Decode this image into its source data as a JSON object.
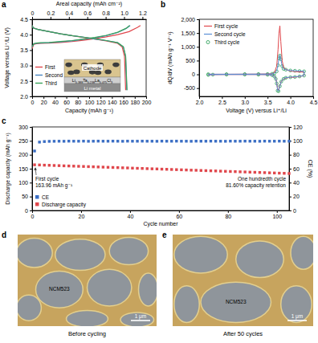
{
  "chart_data": [
    {
      "panel_label": "a",
      "type": "line",
      "x_label": "Capacity (mAh g⁻¹)",
      "xlim": [
        0,
        200
      ],
      "xticks": [
        0,
        20,
        40,
        60,
        80,
        100,
        120,
        140,
        160,
        180,
        200
      ],
      "x2_label": "Areal capacity (mAh cm⁻²)",
      "x2lim": [
        0,
        1.24
      ],
      "x2ticks": [
        0,
        0.2,
        0.4,
        0.6,
        0.8,
        {
          "value": 1,
          "label": "1.0"
        },
        1.2
      ],
      "y_label": "Voltage versus Li⁺/Li (V)",
      "ylim": [
        2,
        4.5
      ],
      "yticks": [
        {
          "value": 2,
          "label": "2.0"
        },
        2.5,
        {
          "value": 3,
          "label": "3.0"
        },
        3.5,
        {
          "value": 4,
          "label": "4.0"
        },
        4.5
      ],
      "legend": "lower left",
      "inset": {
        "top_label": "Cathode",
        "middle_label": "Li0.388Ta0.238La0.475Cl3",
        "bottom_label": "Li metal"
      },
      "series": [
        {
          "name": "First",
          "color": "#e0474c",
          "x": [
            0,
            3,
            8,
            15,
            30,
            50,
            70,
            90,
            110,
            130,
            150,
            170,
            185,
            190
          ],
          "values": [
            3.55,
            3.69,
            3.71,
            3.72,
            3.73,
            3.75,
            3.78,
            3.82,
            3.87,
            3.93,
            4.0,
            4.1,
            4.24,
            4.3
          ]
        },
        {
          "name": "Second",
          "color": "#4a86c0",
          "x": [
            0,
            3,
            8,
            15,
            30,
            50,
            70,
            90,
            110,
            130,
            150,
            165,
            172
          ],
          "values": [
            3.6,
            3.7,
            3.72,
            3.73,
            3.74,
            3.77,
            3.8,
            3.85,
            3.9,
            3.97,
            4.07,
            4.2,
            4.3
          ]
        },
        {
          "name": "Third",
          "color": "#3aa35a",
          "x": [
            0,
            3,
            8,
            15,
            30,
            50,
            70,
            90,
            110,
            130,
            150,
            165,
            171
          ],
          "values": [
            3.61,
            3.71,
            3.73,
            3.74,
            3.75,
            3.78,
            3.81,
            3.86,
            3.91,
            3.98,
            4.08,
            4.21,
            4.3
          ]
        },
        {
          "name": "First",
          "color": "#e0474c",
          "x": [
            0,
            2,
            10,
            30,
            50,
            70,
            90,
            110,
            130,
            150,
            158,
            162,
            164
          ],
          "values": [
            4.3,
            4.22,
            4.17,
            4.1,
            4.03,
            3.97,
            3.91,
            3.86,
            3.8,
            3.72,
            3.6,
            3.3,
            2.2
          ]
        },
        {
          "name": "Second",
          "color": "#4a86c0",
          "x": [
            0,
            2,
            10,
            30,
            50,
            70,
            90,
            110,
            130,
            150,
            160,
            164,
            166
          ],
          "values": [
            4.3,
            4.22,
            4.17,
            4.1,
            4.03,
            3.97,
            3.92,
            3.86,
            3.81,
            3.74,
            3.6,
            3.3,
            2.2
          ]
        },
        {
          "name": "Third",
          "color": "#3aa35a",
          "x": [
            0,
            2,
            10,
            30,
            50,
            70,
            90,
            110,
            130,
            150,
            160,
            164,
            166.5
          ],
          "values": [
            4.3,
            4.22,
            4.17,
            4.1,
            4.03,
            3.97,
            3.92,
            3.87,
            3.81,
            3.74,
            3.61,
            3.3,
            2.2
          ]
        }
      ]
    },
    {
      "panel_label": "b",
      "type": "line",
      "x_label": "Voltage (V) versus Li⁺/Li",
      "xlim": [
        2,
        4.5
      ],
      "xticks": [
        {
          "value": 2,
          "label": "2.0"
        },
        2.5,
        {
          "value": 3,
          "label": "3.0"
        },
        3.5,
        {
          "value": 4,
          "label": "4.0"
        },
        4.5
      ],
      "y_label": "dQ/dV (mAh g⁻¹ V⁻¹)",
      "ylim": [
        -800,
        2000
      ],
      "yticks": [
        -500,
        0,
        500,
        {
          "value": 1000,
          "label": "1,000"
        },
        {
          "value": 1500,
          "label": "1,500"
        },
        {
          "value": 2000,
          "label": "2,000"
        }
      ],
      "legend": "upper left",
      "series": [
        {
          "name": "First cycle",
          "color": "#e0474c",
          "line_style": "solid",
          "marker": "none",
          "x": [
            2.2,
            2.6,
            3.0,
            3.3,
            3.5,
            3.6,
            3.65,
            3.7,
            3.73,
            3.75,
            3.77,
            3.79,
            3.82,
            3.85,
            3.9,
            4.0,
            4.1,
            4.2,
            4.3,
            4.3,
            4.2,
            4.1,
            4.0,
            3.9,
            3.85,
            3.8,
            3.77,
            3.74,
            3.72,
            3.7,
            3.68,
            3.65,
            3.6,
            3.5,
            3.3,
            3.0,
            2.6,
            2.3,
            2.2
          ],
          "values": [
            5,
            5,
            8,
            10,
            15,
            25,
            60,
            300,
            900,
            1500,
            1760,
            1200,
            500,
            250,
            180,
            120,
            100,
            90,
            80,
            -40,
            -80,
            -100,
            -110,
            -130,
            -170,
            -250,
            -400,
            -560,
            -540,
            -300,
            -150,
            -70,
            -30,
            -10,
            -5,
            -5,
            -5,
            -10,
            -20
          ]
        },
        {
          "name": "Second cycle",
          "color": "#5b8fd6",
          "line_style": "solid",
          "marker": "none",
          "x": [
            2.2,
            2.6,
            3.0,
            3.3,
            3.5,
            3.6,
            3.65,
            3.7,
            3.73,
            3.75,
            3.77,
            3.79,
            3.82,
            3.85,
            3.9,
            4.0,
            4.1,
            4.2,
            4.3,
            4.3,
            4.2,
            4.1,
            4.0,
            3.9,
            3.85,
            3.8,
            3.77,
            3.74,
            3.72,
            3.7,
            3.68,
            3.65,
            3.6,
            3.5,
            3.3,
            3.0,
            2.6,
            2.3,
            2.2
          ],
          "values": [
            5,
            5,
            8,
            10,
            12,
            20,
            40,
            120,
            350,
            600,
            700,
            560,
            300,
            200,
            170,
            140,
            130,
            120,
            110,
            -40,
            -70,
            -90,
            -100,
            -120,
            -160,
            -260,
            -420,
            -600,
            -580,
            -320,
            -160,
            -70,
            -30,
            -12,
            -6,
            -5,
            -5,
            -10,
            -20
          ]
        },
        {
          "name": "Third cycle",
          "color": "#2ca05a",
          "line_style": "none",
          "marker": "circle",
          "x": [
            2.2,
            2.6,
            3.0,
            3.3,
            3.5,
            3.6,
            3.65,
            3.7,
            3.73,
            3.75,
            3.77,
            3.79,
            3.82,
            3.85,
            3.9,
            4.0,
            4.1,
            4.2,
            4.3,
            4.3,
            4.2,
            4.1,
            4.0,
            3.9,
            3.85,
            3.8,
            3.77,
            3.74,
            3.72,
            3.7,
            3.68,
            3.65,
            3.6,
            3.5,
            3.3,
            3.0,
            2.6,
            2.3,
            2.2
          ],
          "values": [
            5,
            5,
            8,
            10,
            12,
            20,
            40,
            110,
            330,
            580,
            680,
            550,
            300,
            200,
            170,
            140,
            130,
            120,
            110,
            -45,
            -75,
            -95,
            -105,
            -125,
            -165,
            -265,
            -430,
            -610,
            -590,
            -330,
            -165,
            -75,
            -32,
            -14,
            -8,
            -6,
            -6,
            -10,
            -20
          ]
        }
      ]
    },
    {
      "panel_label": "c",
      "type": "scatter",
      "x_label": "Cycle number",
      "xlim": [
        0,
        105
      ],
      "xticks": [
        0,
        20,
        40,
        60,
        80,
        100
      ],
      "y_label": "Discharge capacity (mAh g⁻¹)",
      "ylim": [
        0,
        300
      ],
      "yticks": [
        0,
        50,
        100,
        150,
        200,
        250,
        300
      ],
      "y2_label": "CE (%)",
      "y2lim": [
        0,
        120
      ],
      "y2ticks": [
        0,
        20,
        40,
        60,
        80,
        100,
        120
      ],
      "legend": "lower left",
      "annotations": [
        {
          "lines": [
            "First cycle",
            "163.96 mAh g⁻¹"
          ]
        },
        {
          "lines": [
            "One hundredth cycle",
            "81.60% capacity retention"
          ]
        }
      ],
      "x": [
        1,
        3,
        5,
        7,
        9,
        11,
        13,
        15,
        17,
        19,
        21,
        23,
        25,
        27,
        29,
        31,
        33,
        35,
        37,
        39,
        41,
        43,
        45,
        47,
        49,
        51,
        53,
        55,
        57,
        59,
        61,
        63,
        65,
        67,
        69,
        71,
        73,
        75,
        77,
        79,
        81,
        83,
        85,
        87,
        89,
        91,
        93,
        95,
        97,
        99,
        101,
        103,
        105
      ],
      "series": [
        {
          "name": "CE",
          "color": "#3b6ec4",
          "marker": "square",
          "axis": "y2",
          "values": [
            85.4,
            98.2,
            99.0,
            99.3,
            99.4,
            99.5,
            99.4,
            99.6,
            99.5,
            99.5,
            99.6,
            99.4,
            99.5,
            99.6,
            99.5,
            99.5,
            99.6,
            99.5,
            99.4,
            99.6,
            99.5,
            99.5,
            99.6,
            99.5,
            99.5,
            99.4,
            99.6,
            99.5,
            99.5,
            99.6,
            99.5,
            99.5,
            99.4,
            99.6,
            99.5,
            99.5,
            99.6,
            99.5,
            99.5,
            99.4,
            99.6,
            99.5,
            99.5,
            99.6,
            99.5,
            99.5,
            99.4,
            99.6,
            99.5,
            99.5,
            99.6,
            99.5,
            99.5
          ]
        },
        {
          "name": "Discharge capacity",
          "color": "#e0474c",
          "marker": "square",
          "values": [
            163.96,
            163.4,
            162.7,
            162.2,
            161.5,
            161.0,
            160.3,
            159.8,
            159.2,
            158.6,
            158.0,
            157.4,
            156.8,
            156.2,
            155.6,
            155.0,
            154.4,
            153.9,
            153.2,
            152.7,
            152.0,
            151.4,
            150.9,
            150.2,
            149.6,
            149.1,
            148.4,
            147.8,
            147.2,
            146.6,
            146.0,
            145.4,
            144.8,
            144.3,
            143.6,
            143.0,
            142.4,
            141.9,
            141.2,
            140.6,
            140.0,
            139.5,
            138.8,
            138.2,
            137.6,
            137.0,
            136.4,
            135.8,
            135.2,
            134.6,
            134.0,
            133.4,
            132.8
          ]
        }
      ]
    }
  ],
  "images": [
    {
      "panel_label": "d",
      "particle_label": "NCM523",
      "scale_bar": "1 μm",
      "caption": "Before cycling"
    },
    {
      "panel_label": "e",
      "particle_label": "NCM523",
      "scale_bar": "1 μm",
      "caption": "After 50 cycles"
    }
  ]
}
